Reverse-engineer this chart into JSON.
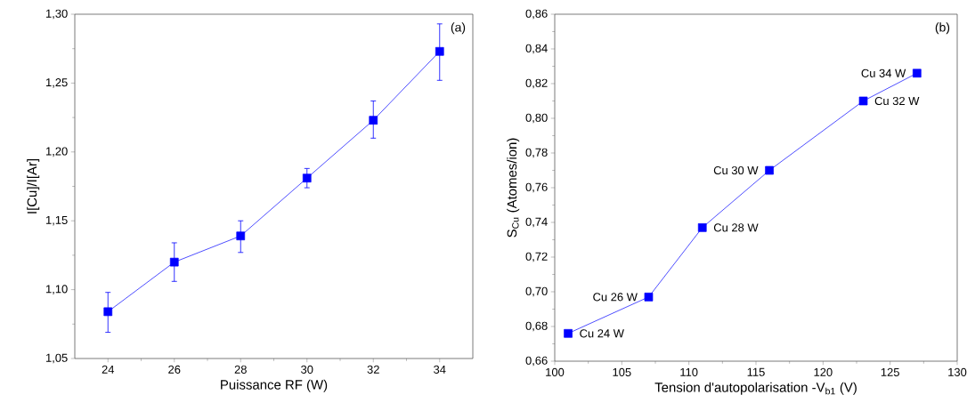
{
  "chart_data": [
    {
      "type": "line",
      "xlabel": "Puissance RF (W)",
      "ylabel": "I[Cu]/I[Ar]",
      "x": [
        24,
        26,
        28,
        30,
        32,
        34
      ],
      "series": [
        {
          "color": "#0000ff",
          "values": [
            1.084,
            1.12,
            1.139,
            1.181,
            1.223,
            1.273
          ],
          "errors": [
            [
              1.069,
              1.098
            ],
            [
              1.106,
              1.134
            ],
            [
              1.127,
              1.15
            ],
            [
              1.174,
              1.188
            ],
            [
              1.21,
              1.237
            ],
            [
              1.252,
              1.293
            ]
          ]
        }
      ],
      "xlim": [
        23,
        35
      ],
      "ylim": [
        1.05,
        1.3
      ],
      "xticks": [
        24,
        26,
        28,
        30,
        32,
        34
      ],
      "yticks": [
        {
          "value": 1.05,
          "label": "1,05"
        },
        {
          "value": 1.1,
          "label": "1,10"
        },
        {
          "value": 1.15,
          "label": "1,15"
        },
        {
          "value": 1.2,
          "label": "1,20"
        },
        {
          "value": 1.25,
          "label": "1,25"
        },
        {
          "value": 1.3,
          "label": "1,30"
        }
      ],
      "marker": "square",
      "line_style": "solid",
      "annotations": [
        "(a)"
      ]
    },
    {
      "type": "line",
      "xlabel": "Tension d'autopolarisation -V$_{b1}$ (V)",
      "ylabel": "S$_{Cu}$ (Atomes/ion)",
      "x": [
        101,
        107,
        111,
        116,
        123,
        127
      ],
      "series": [
        {
          "color": "#0000ff",
          "values": [
            0.676,
            0.697,
            0.737,
            0.77,
            0.81,
            0.826
          ]
        }
      ],
      "xlim": [
        100,
        130
      ],
      "ylim": [
        0.66,
        0.86
      ],
      "xticks": [
        100,
        105,
        110,
        115,
        120,
        125,
        130
      ],
      "yticks": [
        {
          "value": 0.66,
          "label": "0,66"
        },
        {
          "value": 0.68,
          "label": "0,68"
        },
        {
          "value": 0.7,
          "label": "0,70"
        },
        {
          "value": 0.72,
          "label": "0,72"
        },
        {
          "value": 0.74,
          "label": "0,74"
        },
        {
          "value": 0.76,
          "label": "0,76"
        },
        {
          "value": 0.78,
          "label": "0,78"
        },
        {
          "value": 0.8,
          "label": "0,80"
        },
        {
          "value": 0.82,
          "label": "0,82"
        },
        {
          "value": 0.84,
          "label": "0,84"
        },
        {
          "value": 0.86,
          "label": "0,86"
        }
      ],
      "marker": "square",
      "line_style": "solid",
      "annotations": [
        "(b)",
        {
          "text": "Cu 24 W",
          "x": 101,
          "y": 0.676
        },
        {
          "text": "Cu 26 W",
          "x": 107,
          "y": 0.697
        },
        {
          "text": "Cu 28 W",
          "x": 111,
          "y": 0.737
        },
        {
          "text": "Cu 30 W",
          "x": 116,
          "y": 0.77
        },
        {
          "text": "Cu 32 W",
          "x": 123,
          "y": 0.81
        },
        {
          "text": "Cu 34 W",
          "x": 127,
          "y": 0.826
        }
      ]
    }
  ]
}
